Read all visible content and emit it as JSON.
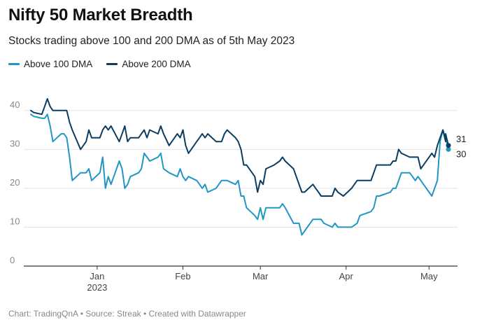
{
  "title": "Nifty 50 Market Breadth",
  "subtitle": "Stocks trading above 100 and 200 DMA as of 5th May 2023",
  "footer": "Chart: TradingQnA • Source: Streak • Created with Datawrapper",
  "colors": {
    "above100": "#2196c4",
    "above200": "#0b3d62",
    "grid": "#e5e5e5",
    "axis": "#333333",
    "tick": "#888888"
  },
  "chart_data": {
    "type": "line",
    "title": "Nifty 50 Market Breadth",
    "subtitle": "Stocks trading above 100 and 200 DMA as of 5th May 2023",
    "xlabel": "",
    "ylabel": "",
    "ylim": [
      0,
      45
    ],
    "yticks": [
      0,
      10,
      20,
      30,
      40
    ],
    "xlim": [
      "2022-12-08",
      "2023-05-08"
    ],
    "xticks": [
      {
        "date": "2023-01-01",
        "label": "Jan",
        "sublabel": "2023"
      },
      {
        "date": "2023-02-01",
        "label": "Feb",
        "sublabel": ""
      },
      {
        "date": "2023-03-01",
        "label": "Mar",
        "sublabel": ""
      },
      {
        "date": "2023-04-01",
        "label": "Apr",
        "sublabel": ""
      },
      {
        "date": "2023-05-01",
        "label": "May",
        "sublabel": ""
      }
    ],
    "grid": true,
    "legend": "top-left",
    "series": [
      {
        "name": "Above 100 DMA",
        "color": "#2196c4",
        "end_label": "30",
        "points": [
          [
            "2022-12-08",
            39
          ],
          [
            "2022-12-09",
            38.5
          ],
          [
            "2022-12-12",
            38
          ],
          [
            "2022-12-13",
            38
          ],
          [
            "2022-12-14",
            39
          ],
          [
            "2022-12-15",
            36
          ],
          [
            "2022-12-16",
            32
          ],
          [
            "2022-12-19",
            34
          ],
          [
            "2022-12-20",
            34
          ],
          [
            "2022-12-21",
            33
          ],
          [
            "2022-12-22",
            28
          ],
          [
            "2022-12-23",
            22
          ],
          [
            "2022-12-26",
            24
          ],
          [
            "2022-12-27",
            24
          ],
          [
            "2022-12-28",
            24
          ],
          [
            "2022-12-29",
            25
          ],
          [
            "2022-12-30",
            22
          ],
          [
            "2023-01-02",
            24
          ],
          [
            "2023-01-03",
            28
          ],
          [
            "2023-01-04",
            20
          ],
          [
            "2023-01-05",
            23
          ],
          [
            "2023-01-06",
            21
          ],
          [
            "2023-01-09",
            27
          ],
          [
            "2023-01-10",
            25
          ],
          [
            "2023-01-11",
            20
          ],
          [
            "2023-01-12",
            21
          ],
          [
            "2023-01-13",
            23
          ],
          [
            "2023-01-16",
            24
          ],
          [
            "2023-01-17",
            25
          ],
          [
            "2023-01-18",
            29
          ],
          [
            "2023-01-19",
            28
          ],
          [
            "2023-01-20",
            27
          ],
          [
            "2023-01-23",
            28
          ],
          [
            "2023-01-24",
            29
          ],
          [
            "2023-01-25",
            25
          ],
          [
            "2023-01-27",
            24
          ],
          [
            "2023-01-30",
            23
          ],
          [
            "2023-01-31",
            25
          ],
          [
            "2023-02-01",
            23
          ],
          [
            "2023-02-02",
            22
          ],
          [
            "2023-02-03",
            23
          ],
          [
            "2023-02-06",
            22
          ],
          [
            "2023-02-07",
            21
          ],
          [
            "2023-02-08",
            20
          ],
          [
            "2023-02-09",
            21
          ],
          [
            "2023-02-10",
            19
          ],
          [
            "2023-02-13",
            20
          ],
          [
            "2023-02-14",
            21
          ],
          [
            "2023-02-15",
            22
          ],
          [
            "2023-02-16",
            22
          ],
          [
            "2023-02-17",
            22
          ],
          [
            "2023-02-20",
            21
          ],
          [
            "2023-02-21",
            22
          ],
          [
            "2023-02-22",
            18
          ],
          [
            "2023-02-23",
            18
          ],
          [
            "2023-02-24",
            15
          ],
          [
            "2023-02-27",
            13
          ],
          [
            "2023-02-28",
            12
          ],
          [
            "2023-03-01",
            15
          ],
          [
            "2023-03-02",
            12
          ],
          [
            "2023-03-03",
            15
          ],
          [
            "2023-03-06",
            15
          ],
          [
            "2023-03-08",
            15
          ],
          [
            "2023-03-09",
            16
          ],
          [
            "2023-03-10",
            15
          ],
          [
            "2023-03-13",
            11
          ],
          [
            "2023-03-14",
            11
          ],
          [
            "2023-03-15",
            11
          ],
          [
            "2023-03-16",
            8
          ],
          [
            "2023-03-17",
            9
          ],
          [
            "2023-03-20",
            12
          ],
          [
            "2023-03-21",
            12
          ],
          [
            "2023-03-22",
            12
          ],
          [
            "2023-03-23",
            12
          ],
          [
            "2023-03-24",
            11
          ],
          [
            "2023-03-27",
            10
          ],
          [
            "2023-03-28",
            11
          ],
          [
            "2023-03-29",
            10
          ],
          [
            "2023-03-31",
            10
          ],
          [
            "2023-04-03",
            10
          ],
          [
            "2023-04-05",
            11
          ],
          [
            "2023-04-06",
            13
          ],
          [
            "2023-04-10",
            14
          ],
          [
            "2023-04-11",
            15
          ],
          [
            "2023-04-12",
            18
          ],
          [
            "2023-04-13",
            18
          ],
          [
            "2023-04-17",
            19
          ],
          [
            "2023-04-18",
            20
          ],
          [
            "2023-04-19",
            20
          ],
          [
            "2023-04-20",
            22
          ],
          [
            "2023-04-21",
            24
          ],
          [
            "2023-04-24",
            24
          ],
          [
            "2023-04-25",
            23
          ],
          [
            "2023-04-26",
            22
          ],
          [
            "2023-04-27",
            23
          ],
          [
            "2023-04-28",
            22
          ],
          [
            "2023-05-02",
            18
          ],
          [
            "2023-05-03",
            20
          ],
          [
            "2023-05-04",
            22
          ],
          [
            "2023-05-05",
            32
          ],
          [
            "2023-05-06",
            35
          ],
          [
            "2023-05-07",
            33
          ],
          [
            "2023-05-08",
            30
          ]
        ]
      },
      {
        "name": "Above 200 DMA",
        "color": "#0b3d62",
        "end_label": "31",
        "points": [
          [
            "2022-12-08",
            40
          ],
          [
            "2022-12-09",
            39.5
          ],
          [
            "2022-12-12",
            39
          ],
          [
            "2022-12-13",
            41
          ],
          [
            "2022-12-14",
            43
          ],
          [
            "2022-12-15",
            41
          ],
          [
            "2022-12-16",
            40
          ],
          [
            "2022-12-19",
            40
          ],
          [
            "2022-12-20",
            40
          ],
          [
            "2022-12-21",
            40
          ],
          [
            "2022-12-22",
            37
          ],
          [
            "2022-12-23",
            35
          ],
          [
            "2022-12-26",
            30
          ],
          [
            "2022-12-27",
            31
          ],
          [
            "2022-12-28",
            32
          ],
          [
            "2022-12-29",
            35
          ],
          [
            "2022-12-30",
            33
          ],
          [
            "2023-01-02",
            33
          ],
          [
            "2023-01-03",
            35
          ],
          [
            "2023-01-04",
            36
          ],
          [
            "2023-01-05",
            35
          ],
          [
            "2023-01-06",
            36
          ],
          [
            "2023-01-09",
            32
          ],
          [
            "2023-01-10",
            34
          ],
          [
            "2023-01-11",
            36
          ],
          [
            "2023-01-12",
            32
          ],
          [
            "2023-01-13",
            33
          ],
          [
            "2023-01-16",
            33
          ],
          [
            "2023-01-17",
            34
          ],
          [
            "2023-01-18",
            35
          ],
          [
            "2023-01-19",
            33
          ],
          [
            "2023-01-20",
            35
          ],
          [
            "2023-01-23",
            34
          ],
          [
            "2023-01-24",
            36
          ],
          [
            "2023-01-25",
            34
          ],
          [
            "2023-01-27",
            31
          ],
          [
            "2023-01-30",
            34
          ],
          [
            "2023-01-31",
            33
          ],
          [
            "2023-02-01",
            35
          ],
          [
            "2023-02-02",
            31
          ],
          [
            "2023-02-03",
            29
          ],
          [
            "2023-02-06",
            32
          ],
          [
            "2023-02-07",
            33
          ],
          [
            "2023-02-08",
            34
          ],
          [
            "2023-02-09",
            33
          ],
          [
            "2023-02-10",
            34
          ],
          [
            "2023-02-13",
            32
          ],
          [
            "2023-02-14",
            32
          ],
          [
            "2023-02-15",
            32
          ],
          [
            "2023-02-16",
            34
          ],
          [
            "2023-02-17",
            35
          ],
          [
            "2023-02-20",
            33
          ],
          [
            "2023-02-21",
            32
          ],
          [
            "2023-02-22",
            30
          ],
          [
            "2023-02-23",
            26
          ],
          [
            "2023-02-24",
            26
          ],
          [
            "2023-02-27",
            23
          ],
          [
            "2023-02-28",
            19
          ],
          [
            "2023-03-01",
            22
          ],
          [
            "2023-03-02",
            21
          ],
          [
            "2023-03-03",
            25
          ],
          [
            "2023-03-06",
            26
          ],
          [
            "2023-03-08",
            27
          ],
          [
            "2023-03-09",
            28
          ],
          [
            "2023-03-10",
            27
          ],
          [
            "2023-03-13",
            25
          ],
          [
            "2023-03-14",
            23
          ],
          [
            "2023-03-15",
            21
          ],
          [
            "2023-03-16",
            19
          ],
          [
            "2023-03-17",
            19
          ],
          [
            "2023-03-20",
            21
          ],
          [
            "2023-03-21",
            20
          ],
          [
            "2023-03-22",
            19
          ],
          [
            "2023-03-23",
            18
          ],
          [
            "2023-03-24",
            18
          ],
          [
            "2023-03-27",
            18
          ],
          [
            "2023-03-28",
            20
          ],
          [
            "2023-03-29",
            19
          ],
          [
            "2023-03-31",
            18
          ],
          [
            "2023-04-03",
            20
          ],
          [
            "2023-04-05",
            22
          ],
          [
            "2023-04-06",
            22
          ],
          [
            "2023-04-10",
            22
          ],
          [
            "2023-04-11",
            24
          ],
          [
            "2023-04-12",
            26
          ],
          [
            "2023-04-13",
            26
          ],
          [
            "2023-04-17",
            26
          ],
          [
            "2023-04-18",
            27
          ],
          [
            "2023-04-19",
            27
          ],
          [
            "2023-04-20",
            30
          ],
          [
            "2023-04-21",
            29
          ],
          [
            "2023-04-24",
            28
          ],
          [
            "2023-04-25",
            28
          ],
          [
            "2023-04-26",
            28
          ],
          [
            "2023-04-27",
            28
          ],
          [
            "2023-04-28",
            25
          ],
          [
            "2023-05-02",
            29
          ],
          [
            "2023-05-03",
            28
          ],
          [
            "2023-05-04",
            31
          ],
          [
            "2023-05-05",
            33
          ],
          [
            "2023-05-06",
            35
          ],
          [
            "2023-05-07",
            32
          ],
          [
            "2023-05-07",
            34
          ],
          [
            "2023-05-08",
            31
          ]
        ]
      }
    ]
  }
}
